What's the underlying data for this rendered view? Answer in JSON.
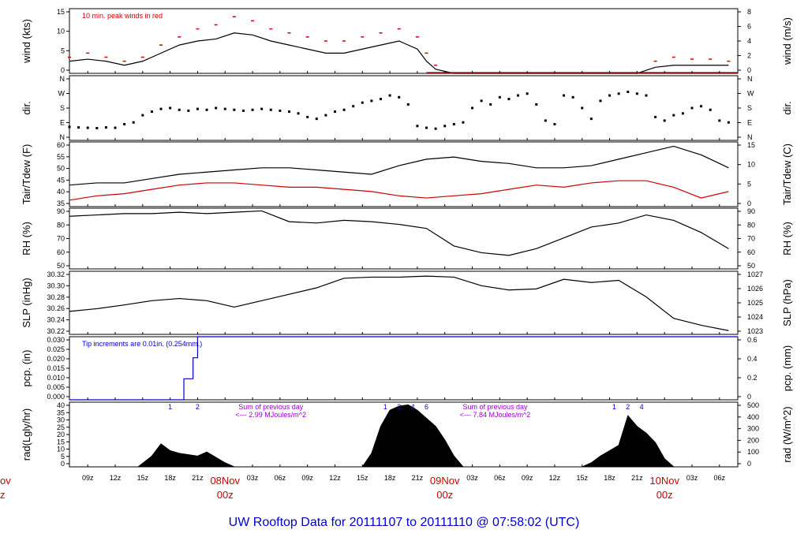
{
  "chart_data": {
    "type": "line",
    "title": "UW Rooftop Data for 20111107  to  20111110 @ 07:58:02  (UTC)",
    "x_axis": {
      "ticks": [
        "09z",
        "12z",
        "15z",
        "18z",
        "21z",
        "03z",
        "06z",
        "09z",
        "12z",
        "15z",
        "18z",
        "21z",
        "03z",
        "06z",
        "09z",
        "12z",
        "15z",
        "18z",
        "21z",
        "03z",
        "06z"
      ],
      "day_labels": [
        {
          "date": "08Nov",
          "time": "00z"
        },
        {
          "date": "09Nov",
          "time": "00z"
        },
        {
          "date": "10Nov",
          "time": "00z"
        }
      ],
      "left_partial": [
        "ov",
        "z"
      ],
      "range_hours": [
        7,
        80
      ]
    },
    "panels": [
      {
        "id": "wind",
        "ylabel_left": "wind (kts)",
        "ylabel_right": "wind (m/s)",
        "ylim": [
          0,
          16
        ],
        "yticks": [
          "0",
          "5",
          "10",
          "15"
        ],
        "yticks_right": [
          "0",
          "2",
          "4",
          "6",
          "8"
        ],
        "annotation": "10 min. peak winds in red",
        "annotation_color": "#cc0000",
        "series": [
          {
            "hours": [
              7,
              9,
              11,
              13,
              15,
              17,
              19,
              21,
              23,
              25,
              27,
              29,
              31,
              33,
              35,
              37,
              39,
              41,
              43,
              45,
              46,
              47,
              49,
              51,
              53,
              55,
              57,
              59,
              61,
              63,
              65,
              67,
              69,
              71,
              73,
              75,
              77,
              79
            ],
            "values": [
              3,
              3.5,
              3,
              2,
              3,
              5,
              7,
              8,
              8.5,
              10,
              9.5,
              8,
              7,
              6,
              5,
              5,
              6,
              7,
              8,
              6,
              3,
              1,
              0,
              0,
              0,
              0,
              0,
              0,
              0,
              0,
              0,
              0,
              0,
              1.5,
              2,
              2,
              2,
              2
            ],
            "color": "#000000"
          },
          {
            "hours": [
              7,
              9,
              11,
              13,
              15,
              17,
              19,
              21,
              23,
              25,
              27,
              29,
              31,
              33,
              35,
              37,
              39,
              41,
              43,
              45,
              46,
              47,
              49,
              51,
              53,
              55,
              57,
              59,
              61,
              63,
              65,
              67,
              69,
              71,
              73,
              75,
              77,
              79
            ],
            "values": [
              4,
              5,
              4,
              3,
              4,
              7,
              9,
              11,
              12,
              14,
              13,
              11,
              10,
              9,
              8,
              8,
              9,
              10,
              11,
              9,
              5,
              2,
              0,
              0,
              0,
              0,
              0,
              0,
              0,
              0,
              0,
              0,
              0,
              3,
              4,
              3.5,
              3.5,
              3
            ],
            "color": "#cc0000",
            "style": "peaks"
          }
        ]
      },
      {
        "id": "dir",
        "ylabel_left": "dir.",
        "ylabel_right": "dir.",
        "ylim": [
          0,
          360
        ],
        "yticks": [
          "N",
          "E",
          "S",
          "W",
          "N"
        ],
        "series": [
          {
            "hours": [
              7,
              8,
              9,
              10,
              11,
              12,
              13,
              14,
              15,
              16,
              17,
              18,
              19,
              20,
              21,
              22,
              23,
              24,
              25,
              26,
              27,
              28,
              29,
              30,
              31,
              32,
              33,
              34,
              35,
              36,
              37,
              38,
              39,
              40,
              41,
              42,
              43,
              44,
              45,
              46,
              47,
              48,
              49,
              50,
              51,
              52,
              53,
              54,
              55,
              56,
              57,
              58,
              59,
              60,
              61,
              62,
              63,
              64,
              65,
              66,
              67,
              68,
              69,
              70,
              71,
              72,
              73,
              74,
              75,
              76,
              77,
              78,
              79
            ],
            "values": [
              75,
              72,
              70,
              68,
              72,
              70,
              90,
              100,
              140,
              160,
              175,
              180,
              170,
              165,
              175,
              170,
              180,
              175,
              170,
              165,
              170,
              175,
              170,
              165,
              160,
              150,
              130,
              120,
              140,
              160,
              170,
              190,
              210,
              220,
              230,
              250,
              240,
              200,
              80,
              70,
              65,
              80,
              90,
              100,
              180,
              220,
              200,
              240,
              230,
              250,
              260,
              200,
              110,
              90,
              250,
              240,
              180,
              120,
              220,
              250,
              260,
              270,
              260,
              250,
              130,
              110,
              140,
              150,
              180,
              190,
              170,
              110,
              100
            ],
            "color": "#000000",
            "style": "dots"
          }
        ]
      },
      {
        "id": "temp",
        "ylabel_left": "Tair/Tdew (F)",
        "ylabel_right": "Tair/Tdew (C)",
        "ylim": [
          32,
          62
        ],
        "yticks": [
          "35",
          "40",
          "45",
          "50",
          "55",
          "60"
        ],
        "yticks_right": [
          "0",
          "5",
          "10",
          "15"
        ],
        "series": [
          {
            "name": "Tair",
            "hours": [
              7,
              10,
              13,
              16,
              19,
              22,
              25,
              28,
              31,
              34,
              37,
              40,
              43,
              46,
              49,
              52,
              55,
              58,
              61,
              64,
              67,
              70,
              73,
              76,
              79
            ],
            "values": [
              42,
              43,
              43,
              45,
              47,
              48,
              49,
              50,
              50,
              49,
              48,
              47,
              51,
              54,
              55,
              53,
              52,
              50,
              50,
              51,
              54,
              57,
              60,
              56,
              50
            ],
            "color": "#000000"
          },
          {
            "name": "Tdew",
            "hours": [
              7,
              10,
              13,
              16,
              19,
              22,
              25,
              28,
              31,
              34,
              37,
              40,
              43,
              46,
              49,
              52,
              55,
              58,
              61,
              64,
              67,
              70,
              73,
              76,
              79
            ],
            "values": [
              35,
              37,
              38,
              40,
              42,
              43,
              43,
              42,
              41,
              41,
              40,
              39,
              37,
              36,
              37,
              38,
              40,
              42,
              41,
              43,
              44,
              44,
              41,
              36,
              39
            ],
            "color": "#cc0000"
          }
        ]
      },
      {
        "id": "rh",
        "ylabel_left": "RH (%)",
        "ylabel_right": "RH (%)",
        "ylim": [
          45,
          90
        ],
        "yticks": [
          "50",
          "60",
          "70",
          "80",
          "90"
        ],
        "yticks_right": [
          "50",
          "60",
          "70",
          "80",
          "90"
        ],
        "series": [
          {
            "hours": [
              7,
              10,
              13,
              16,
              19,
              22,
              25,
              28,
              31,
              34,
              37,
              40,
              43,
              46,
              49,
              52,
              55,
              58,
              61,
              64,
              67,
              70,
              73,
              76,
              79
            ],
            "values": [
              84,
              85,
              86,
              86,
              87,
              86,
              87,
              88,
              80,
              79,
              81,
              80,
              78,
              75,
              62,
              57,
              55,
              60,
              68,
              76,
              79,
              85,
              81,
              72,
              60
            ],
            "color": "#000000"
          }
        ]
      },
      {
        "id": "slp",
        "ylabel_left": "SLP (inHg)",
        "ylabel_right": "SLP (hPa)",
        "ylim": [
          30.205,
          30.323
        ],
        "yticks": [
          "30.22",
          "30.24",
          "30.26",
          "30.28",
          "30.30",
          "30.32"
        ],
        "yticks_right": [
          "1023",
          "1024",
          "1025",
          "1026",
          "1027"
        ],
        "series": [
          {
            "hours": [
              7,
              10,
              13,
              16,
              19,
              22,
              25,
              28,
              31,
              34,
              37,
              40,
              43,
              46,
              49,
              52,
              55,
              58,
              61,
              64,
              67,
              70,
              73,
              76,
              79
            ],
            "values": [
              30.248,
              30.253,
              30.26,
              30.268,
              30.272,
              30.268,
              30.256,
              30.268,
              30.28,
              30.292,
              30.31,
              30.312,
              30.312,
              30.314,
              30.312,
              30.296,
              30.288,
              30.29,
              30.308,
              30.302,
              30.306,
              30.275,
              30.235,
              30.222,
              30.212
            ],
            "color": "#000000"
          }
        ]
      },
      {
        "id": "pcp",
        "ylabel_left": "pcp. (in)",
        "ylabel_right": "pcp. (mm)",
        "ylim": [
          0,
          0.03
        ],
        "yticks": [
          "0.000",
          "0.005",
          "0.010",
          "0.015",
          "0.020",
          "0.025",
          "0.030"
        ],
        "yticks_right": [
          "0",
          "0.2",
          "0.4",
          "0.6"
        ],
        "annotation": "Tip increments are 0.01in. (0.254mm.)",
        "annotation_color": "#0000cc",
        "series": [
          {
            "hours": [
              7,
              19.5,
              19.5,
              20.5,
              20.5,
              21,
              21,
              21.5,
              21.5,
              80
            ],
            "values": [
              0,
              0,
              0.01,
              0.01,
              0.02,
              0.02,
              0.03,
              0.03,
              0.03,
              0.03
            ],
            "color": "#0000cc",
            "style": "step"
          }
        ]
      },
      {
        "id": "rad",
        "ylabel_left": "rad(Lgly/hr)",
        "ylabel_right": "rad (W/m^2)",
        "ylim": [
          0,
          48
        ],
        "yticks": [
          "0",
          "5",
          "10",
          "15",
          "20",
          "25",
          "30",
          "35",
          "40"
        ],
        "yticks_right": [
          "0",
          "100",
          "200",
          "300",
          "400",
          "500"
        ],
        "markers": [
          {
            "hour": 18,
            "label": "1"
          },
          {
            "hour": 21,
            "label": "2"
          },
          {
            "hour": 41.5,
            "label": "1"
          },
          {
            "hour": 43,
            "label": "2"
          },
          {
            "hour": 44.5,
            "label": "4"
          },
          {
            "hour": 46,
            "label": "6"
          },
          {
            "hour": 66.5,
            "label": "1"
          },
          {
            "hour": 68,
            "label": "2"
          },
          {
            "hour": 69.5,
            "label": "4"
          }
        ],
        "notes": [
          {
            "hour": 29,
            "lines": [
              "Sum of previous day",
              "<--- 2.99 MJoules/m^2"
            ]
          },
          {
            "hour": 53.5,
            "lines": [
              "Sum of previous day",
              "<--- 7.84 MJoules/m^2"
            ]
          }
        ],
        "series": [
          {
            "hours": [
              14.5,
              16,
              17,
              18,
              19,
              20,
              21,
              22,
              23,
              24,
              25
            ],
            "values": [
              0,
              8,
              17,
              12,
              10,
              9,
              8,
              11,
              7,
              3,
              0
            ],
            "color": "#000000",
            "style": "area"
          },
          {
            "hours": [
              39,
              40,
              41,
              42,
              43,
              44,
              45,
              46,
              47,
              48,
              49,
              50
            ],
            "values": [
              0,
              10,
              30,
              42,
              45,
              46,
              42,
              36,
              30,
              20,
              8,
              0
            ],
            "color": "#000000",
            "style": "area"
          },
          {
            "hours": [
              63,
              64,
              65,
              66,
              67,
              68,
              69,
              70,
              71,
              72,
              73
            ],
            "values": [
              0,
              3,
              8,
              12,
              16,
              38,
              30,
              25,
              18,
              6,
              0
            ],
            "color": "#000000",
            "style": "area"
          }
        ]
      }
    ]
  }
}
